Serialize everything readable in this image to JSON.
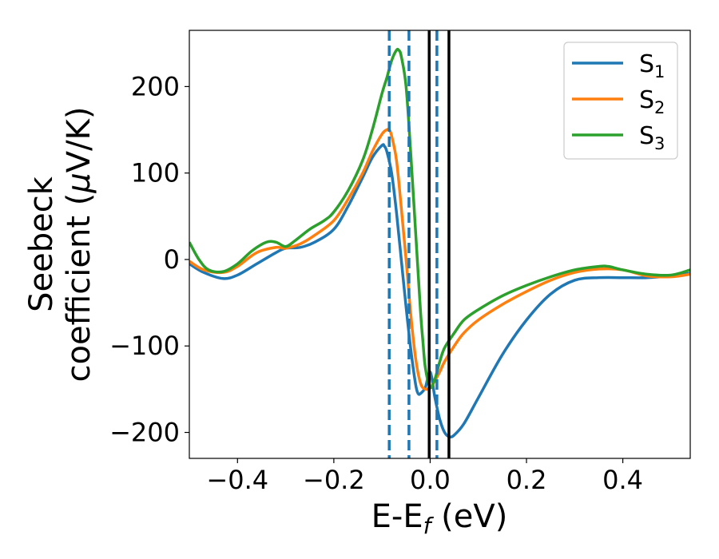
{
  "chart_data": {
    "type": "line",
    "xlabel": {
      "main": "E-E",
      "sub": "f",
      "suffix": " (eV)"
    },
    "ylabel": {
      "line1": "Seebeck",
      "line2_prefix": "coefficient  (",
      "mu": "μ",
      "line2_suffix": "V/K)"
    },
    "xlim": [
      -0.5,
      0.54
    ],
    "ylim": [
      -230,
      265
    ],
    "xticks": [
      -0.4,
      -0.2,
      0.0,
      0.2,
      0.4
    ],
    "xtick_labels": [
      "−0.4",
      "−0.2",
      "0.0",
      "0.2",
      "0.4"
    ],
    "yticks": [
      -200,
      -100,
      0,
      100,
      200
    ],
    "ytick_labels": [
      "−200",
      "−100",
      "0",
      "100",
      "200"
    ],
    "grid": false,
    "legend": "top-right",
    "series": [
      {
        "name": "S",
        "sub": "1",
        "color": "#1f77b4",
        "x": [
          -0.5,
          -0.47,
          -0.43,
          -0.4,
          -0.36,
          -0.32,
          -0.3,
          -0.27,
          -0.24,
          -0.2,
          -0.17,
          -0.14,
          -0.12,
          -0.1,
          -0.095,
          -0.09,
          -0.08,
          -0.07,
          -0.06,
          -0.05,
          -0.04,
          -0.03,
          -0.025,
          -0.02,
          -0.01,
          0.0,
          0.01,
          0.02,
          0.03,
          0.04,
          0.05,
          0.07,
          0.1,
          0.15,
          0.2,
          0.25,
          0.3,
          0.35,
          0.4,
          0.45,
          0.5,
          0.54
        ],
        "y": [
          -5,
          -15,
          -22,
          -18,
          -5,
          8,
          13,
          14,
          20,
          35,
          62,
          95,
          118,
          132,
          131,
          125,
          100,
          55,
          0,
          -55,
          -105,
          -145,
          -155,
          -155,
          -148,
          -130,
          -160,
          -185,
          -200,
          -205,
          -203,
          -190,
          -160,
          -110,
          -70,
          -40,
          -24,
          -21,
          -21,
          -21,
          -19,
          -16
        ]
      },
      {
        "name": "S",
        "sub": "2",
        "color": "#ff7f0e",
        "x": [
          -0.5,
          -0.47,
          -0.43,
          -0.4,
          -0.36,
          -0.32,
          -0.3,
          -0.27,
          -0.24,
          -0.2,
          -0.17,
          -0.14,
          -0.12,
          -0.1,
          -0.09,
          -0.085,
          -0.08,
          -0.07,
          -0.06,
          -0.05,
          -0.04,
          -0.03,
          -0.02,
          -0.01,
          0.0,
          0.01,
          0.02,
          0.03,
          0.05,
          0.07,
          0.1,
          0.15,
          0.2,
          0.25,
          0.3,
          0.35,
          0.4,
          0.45,
          0.5,
          0.54
        ],
        "y": [
          -2,
          -12,
          -15,
          -8,
          8,
          14,
          13,
          18,
          28,
          45,
          70,
          100,
          125,
          145,
          150,
          150,
          143,
          115,
          60,
          0,
          -65,
          -115,
          -143,
          -150,
          -148,
          -140,
          -130,
          -118,
          -100,
          -85,
          -70,
          -52,
          -37,
          -24,
          -15,
          -11,
          -12,
          -19,
          -20,
          -17
        ]
      },
      {
        "name": "S",
        "sub": "3",
        "color": "#2ca02c",
        "x": [
          -0.5,
          -0.48,
          -0.46,
          -0.43,
          -0.4,
          -0.37,
          -0.34,
          -0.32,
          -0.3,
          -0.28,
          -0.25,
          -0.22,
          -0.2,
          -0.17,
          -0.14,
          -0.12,
          -0.1,
          -0.09,
          -0.08,
          -0.07,
          -0.065,
          -0.06,
          -0.05,
          -0.04,
          -0.03,
          -0.02,
          -0.015,
          -0.01,
          0.0,
          0.01,
          0.02,
          0.03,
          0.05,
          0.07,
          0.1,
          0.15,
          0.2,
          0.25,
          0.3,
          0.35,
          0.37,
          0.4,
          0.45,
          0.5,
          0.54
        ],
        "y": [
          20,
          0,
          -12,
          -14,
          -5,
          10,
          20,
          20,
          15,
          22,
          35,
          45,
          55,
          80,
          115,
          150,
          192,
          210,
          230,
          242,
          242,
          235,
          200,
          120,
          30,
          -60,
          -95,
          -125,
          -148,
          -138,
          -118,
          -102,
          -85,
          -70,
          -58,
          -42,
          -30,
          -20,
          -12,
          -8,
          -8,
          -12,
          -17,
          -18,
          -12
        ]
      }
    ],
    "vlines": [
      {
        "x": -0.085,
        "style": "dashed",
        "color": "#1f77b4"
      },
      {
        "x": -0.044,
        "style": "dashed",
        "color": "#1f77b4"
      },
      {
        "x": 0.014,
        "style": "dashed",
        "color": "#1f77b4"
      },
      {
        "x": -0.002,
        "style": "solid",
        "color": "#000000"
      },
      {
        "x": 0.039,
        "style": "solid",
        "color": "#000000"
      }
    ]
  }
}
